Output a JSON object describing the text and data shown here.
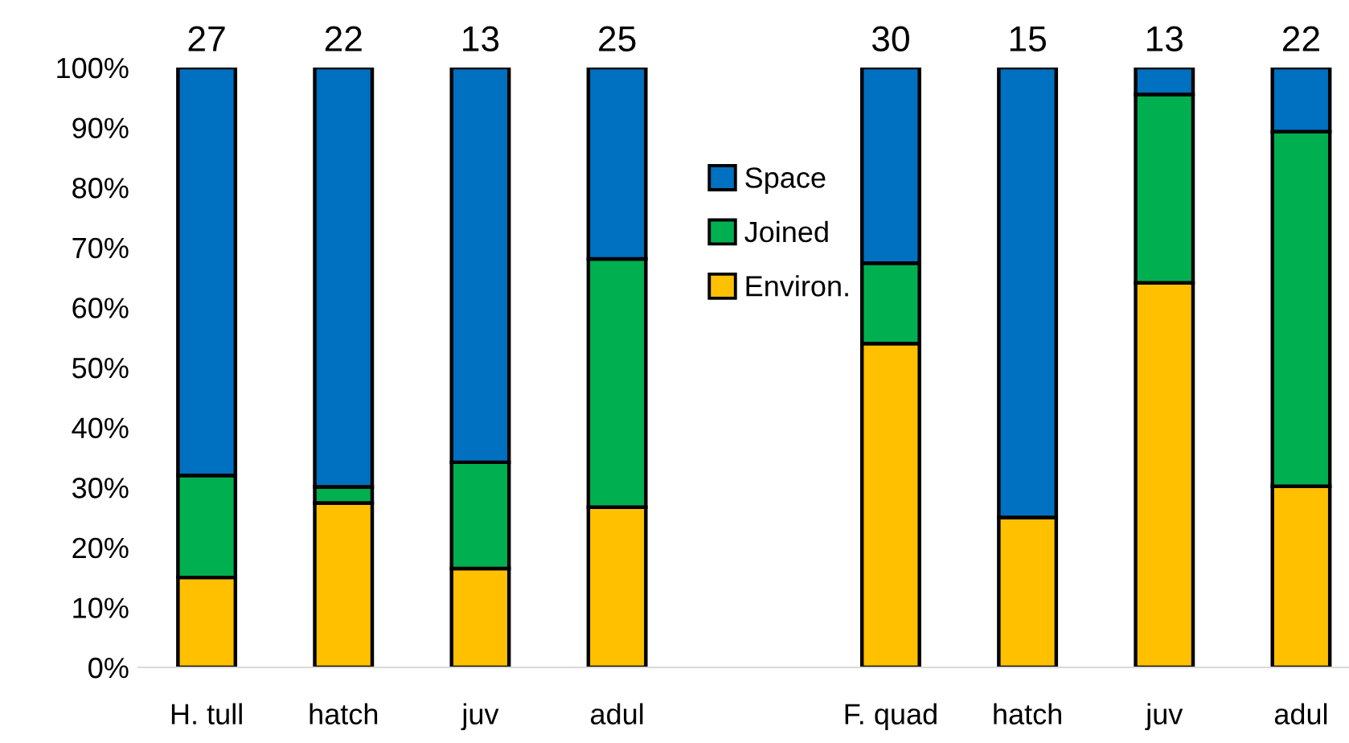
{
  "chart_data": {
    "type": "bar",
    "stacked": true,
    "categories": [
      "H. tull",
      "hatch",
      "juv",
      "adul",
      null,
      "F. quad",
      "hatch",
      "juv",
      "adul"
    ],
    "series": [
      {
        "name": "Environ.",
        "color": "#ffc000",
        "values": [
          15,
          27.4,
          16.5,
          26.7,
          null,
          54,
          25,
          64.1,
          30.2
        ]
      },
      {
        "name": "Joined",
        "color": "#00b050",
        "values": [
          17,
          2.7,
          17.7,
          41.4,
          null,
          13.4,
          0,
          31.4,
          59.1
        ]
      },
      {
        "name": "Space",
        "color": "#0070c0",
        "values": [
          68,
          69.9,
          65.8,
          31.9,
          null,
          32.6,
          75,
          4.5,
          10.7
        ]
      }
    ],
    "annotations": [
      "27",
      "22",
      "13",
      "25",
      "30",
      "15",
      "13",
      "22"
    ],
    "ylim": [
      0,
      100
    ],
    "yticks": [
      {
        "value": 0,
        "label": "0%"
      },
      {
        "value": 10,
        "label": "10%"
      },
      {
        "value": 20,
        "label": "20%"
      },
      {
        "value": 30,
        "label": "30%"
      },
      {
        "value": 40,
        "label": "40%"
      },
      {
        "value": 50,
        "label": "50%"
      },
      {
        "value": 60,
        "label": "60%"
      },
      {
        "value": 70,
        "label": "70%"
      },
      {
        "value": 80,
        "label": "80%"
      },
      {
        "value": 90,
        "label": "90%"
      },
      {
        "value": 100,
        "label": "100%"
      }
    ],
    "legend": "top"
  }
}
